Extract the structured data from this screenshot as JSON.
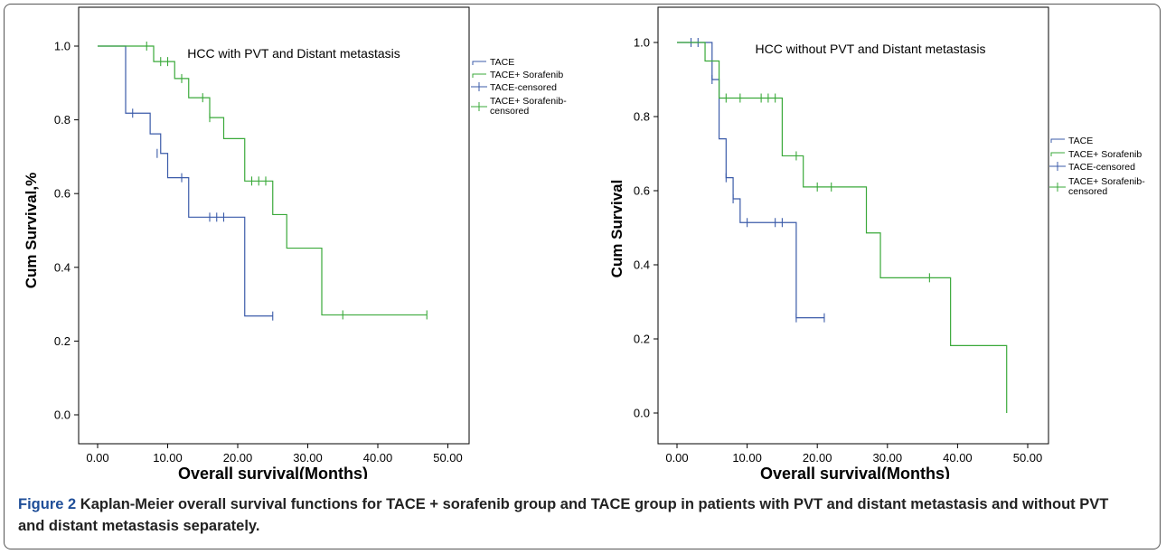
{
  "figure": {
    "caption_label": "Figure 2",
    "caption_text": "Kaplan-Meier overall survival functions for TACE + sorafenib group and TACE group in patients with PVT and distant metastasis and without PVT and distant metastasis separately."
  },
  "colors": {
    "tace": "#3b5ba9",
    "tace_sorafenib": "#3aa93a",
    "frame": "#555555",
    "caption_label": "#1f4e98"
  },
  "chart_data": [
    {
      "type": "line",
      "subtype": "kaplan-meier step",
      "title": "HCC with PVT and Distant metastasis",
      "xlabel": "Overall survival(Months)",
      "ylabel": "Cum Survival,%",
      "xlim": [
        0,
        50
      ],
      "ylim": [
        0,
        1
      ],
      "x_ticks": [
        "0.00",
        "10.00",
        "20.00",
        "30.00",
        "40.00",
        "50.00"
      ],
      "y_ticks": [
        "0.0",
        "0.2",
        "0.4",
        "0.6",
        "0.8",
        "1.0"
      ],
      "grid": false,
      "legend_position": "right",
      "legend": [
        "TACE",
        "TACE+ Sorafenib",
        "TACE-censored",
        "TACE+ Sorafenib-censored"
      ],
      "series": [
        {
          "name": "TACE",
          "color_key": "tace",
          "steps": [
            [
              0,
              1.0
            ],
            [
              4,
              0.818
            ],
            [
              7.5,
              0.762
            ],
            [
              9,
              0.709
            ],
            [
              10,
              0.643
            ],
            [
              13,
              0.536
            ],
            [
              21,
              0.268
            ]
          ],
          "end_x": 25,
          "censored": [
            [
              5,
              0.818
            ],
            [
              8.5,
              0.709
            ],
            [
              12,
              0.643
            ],
            [
              16,
              0.536
            ],
            [
              17,
              0.536
            ],
            [
              18,
              0.536
            ],
            [
              25,
              0.268
            ]
          ]
        },
        {
          "name": "TACE+ Sorafenib",
          "color_key": "tace_sorafenib",
          "steps": [
            [
              0,
              1.0
            ],
            [
              8,
              0.958
            ],
            [
              11,
              0.912
            ],
            [
              13,
              0.86
            ],
            [
              16,
              0.806
            ],
            [
              18,
              0.749
            ],
            [
              21,
              0.634
            ],
            [
              25,
              0.543
            ],
            [
              27,
              0.452
            ],
            [
              32,
              0.271
            ]
          ],
          "end_x": 47,
          "censored": [
            [
              7,
              1.0
            ],
            [
              9,
              0.958
            ],
            [
              10,
              0.958
            ],
            [
              12,
              0.912
            ],
            [
              15,
              0.86
            ],
            [
              16,
              0.806
            ],
            [
              22,
              0.634
            ],
            [
              23,
              0.634
            ],
            [
              24,
              0.634
            ],
            [
              35,
              0.271
            ],
            [
              47,
              0.271
            ]
          ]
        }
      ]
    },
    {
      "type": "line",
      "subtype": "kaplan-meier step",
      "title": "HCC without PVT and Distant metastasis",
      "xlabel": "Overall survival(Months)",
      "ylabel": "Cum Survival",
      "xlim": [
        0,
        50
      ],
      "ylim": [
        0,
        1
      ],
      "x_ticks": [
        "0.00",
        "10.00",
        "20.00",
        "30.00",
        "40.00",
        "50.00"
      ],
      "y_ticks": [
        "0.0",
        "0.2",
        "0.4",
        "0.6",
        "0.8",
        "1.0"
      ],
      "grid": false,
      "legend_position": "right",
      "legend": [
        "TACE",
        "TACE+ Sorafenib",
        "TACE-censored",
        "TACE+ Sorafenib-censored"
      ],
      "series": [
        {
          "name": "TACE",
          "color_key": "tace",
          "steps": [
            [
              0,
              1.0
            ],
            [
              5,
              0.9
            ],
            [
              6,
              0.74
            ],
            [
              7,
              0.635
            ],
            [
              8,
              0.578
            ],
            [
              9,
              0.514
            ],
            [
              17,
              0.257
            ]
          ],
          "end_x": 21,
          "censored": [
            [
              2,
              1.0
            ],
            [
              3,
              1.0
            ],
            [
              5,
              0.9
            ],
            [
              7,
              0.635
            ],
            [
              8,
              0.578
            ],
            [
              10,
              0.514
            ],
            [
              14,
              0.514
            ],
            [
              15,
              0.514
            ],
            [
              17,
              0.257
            ],
            [
              21,
              0.257
            ]
          ]
        },
        {
          "name": "TACE+ Sorafenib",
          "color_key": "tace_sorafenib",
          "steps": [
            [
              0,
              1.0
            ],
            [
              4,
              0.95
            ],
            [
              6,
              0.85
            ],
            [
              15,
              0.694
            ],
            [
              18,
              0.61
            ],
            [
              27,
              0.486
            ],
            [
              29,
              0.365
            ],
            [
              39,
              0.182
            ],
            [
              47,
              0.0
            ]
          ],
          "end_x": 47,
          "censored": [
            [
              7,
              0.85
            ],
            [
              9,
              0.85
            ],
            [
              12,
              0.85
            ],
            [
              13,
              0.85
            ],
            [
              14,
              0.85
            ],
            [
              17,
              0.694
            ],
            [
              20,
              0.61
            ],
            [
              22,
              0.61
            ],
            [
              36,
              0.365
            ]
          ]
        }
      ]
    }
  ]
}
